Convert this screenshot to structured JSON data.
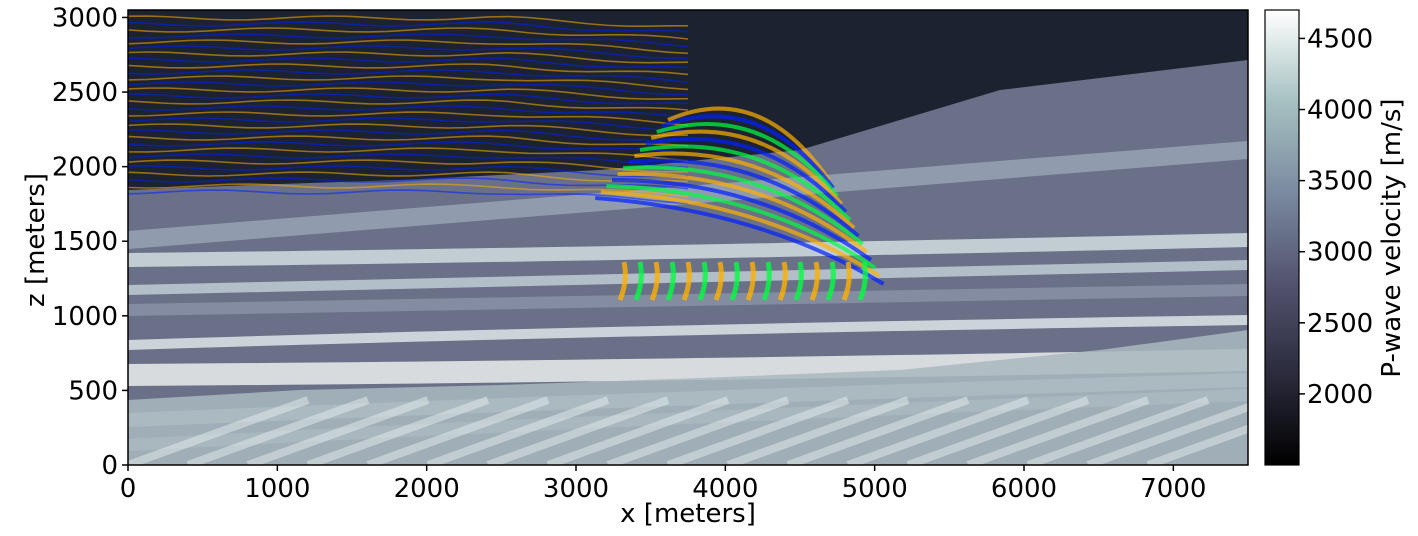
{
  "chart_data": {
    "type": "heatmap",
    "title": "",
    "xlabel": "x [meters]",
    "ylabel": "z [meters]",
    "xlim": [
      0,
      7500
    ],
    "ylim": [
      0,
      3050
    ],
    "x_ticks": [
      0,
      1000,
      2000,
      3000,
      4000,
      5000,
      6000,
      7000
    ],
    "y_ticks": [
      0,
      500,
      1000,
      1500,
      2000,
      2500,
      3000
    ],
    "x_tick_labels": [
      "0",
      "1000",
      "2000",
      "3000",
      "4000",
      "5000",
      "6000",
      "7000"
    ],
    "y_tick_labels": [
      "0",
      "500",
      "1000",
      "1500",
      "2000",
      "2500",
      "3000"
    ],
    "colorbar": {
      "label": "P-wave velocity [m/s]",
      "range": [
        1500,
        4700
      ],
      "ticks": [
        2000,
        2500,
        3000,
        3500,
        4000,
        4500
      ],
      "tick_labels": [
        "2000",
        "2500",
        "3000",
        "3500",
        "4000",
        "4500"
      ],
      "colormap": "bone",
      "colors": [
        "#000000",
        "#2b2b3d",
        "#53536f",
        "#7a8aa0",
        "#a6c1c1",
        "#ffffff"
      ]
    },
    "overlay": {
      "description": "seismic wavefield overlay",
      "colors": [
        "#ffb000",
        "#0020ff",
        "#00ff40"
      ]
    }
  }
}
